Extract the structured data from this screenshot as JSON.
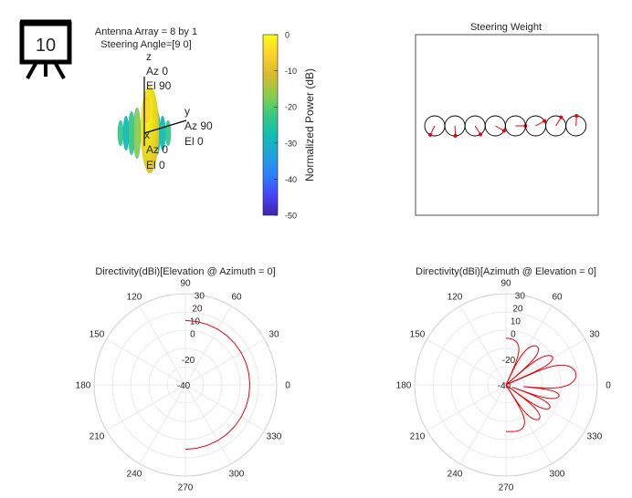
{
  "slide_badge": {
    "number": "10"
  },
  "pattern3d": {
    "title_line1": "Antenna Array = 8 by 1",
    "title_line2": "Steering Angle=[9 0]",
    "axis_z": {
      "name": "z",
      "az": "Az 0",
      "el": "El 90"
    },
    "axis_y": {
      "name": "y",
      "az": "Az 90",
      "el": "El 0"
    },
    "axis_x": {
      "name": "x",
      "az": "Az 0",
      "el": "El 0"
    }
  },
  "colorbar": {
    "label": "Normalized Power (dB)",
    "ticks": [
      0,
      -10,
      -20,
      -30,
      -40,
      -50
    ],
    "range": [
      -50,
      0
    ],
    "colormap": [
      "#3e26a8",
      "#4743f8",
      "#2c7ffd",
      "#1fa3dc",
      "#10bdb3",
      "#36ca83",
      "#8ccd4b",
      "#d9ba2a",
      "#fdd12a",
      "#f9fb15"
    ]
  },
  "steering": {
    "title": "Steering Weight",
    "n_elements": 8,
    "phase_deg": [
      -116.4,
      -87.3,
      -58.2,
      -29.1,
      0,
      29.1,
      58.2,
      87.3
    ],
    "vector_color": "#e8000b"
  },
  "chart_data": [
    {
      "type": "polar-line",
      "title": "Directivity(dBi)[Elevation @ Azimuth = 0]",
      "rlim": [
        -40,
        30
      ],
      "r_ticks": [
        -40,
        -20,
        0,
        10,
        20,
        30
      ],
      "theta_ticks": [
        0,
        30,
        60,
        90,
        120,
        150,
        180,
        210,
        240,
        270,
        300,
        330
      ],
      "line_color": "#e8000b",
      "series": [
        {
          "theta_deg": [
            -90,
            -80,
            -70,
            -60,
            -50,
            -40,
            -30,
            -20,
            -10,
            0,
            10,
            20,
            30,
            40,
            50,
            60,
            70,
            80,
            90
          ],
          "r": [
            9.4,
            9.4,
            9.4,
            9.4,
            9.4,
            9.4,
            9.4,
            9.4,
            9.4,
            9.4,
            9.4,
            9.4,
            9.4,
            9.4,
            9.4,
            9.4,
            9.4,
            9.4,
            9.4
          ]
        }
      ]
    },
    {
      "type": "polar-line",
      "title": "Directivity(dBi)[Azimuth @ Elevation = 0]",
      "rlim": [
        -40,
        30
      ],
      "r_ticks": [
        -40,
        -20,
        0,
        10,
        20,
        30
      ],
      "theta_ticks": [
        0,
        30,
        60,
        90,
        120,
        150,
        180,
        210,
        240,
        270,
        300,
        330
      ],
      "line_color": "#e8000b",
      "n_elements": 8,
      "element_spacing_wavelengths": 0.5,
      "steer_deg": 9,
      "peak_dbi": 14.3
    }
  ]
}
